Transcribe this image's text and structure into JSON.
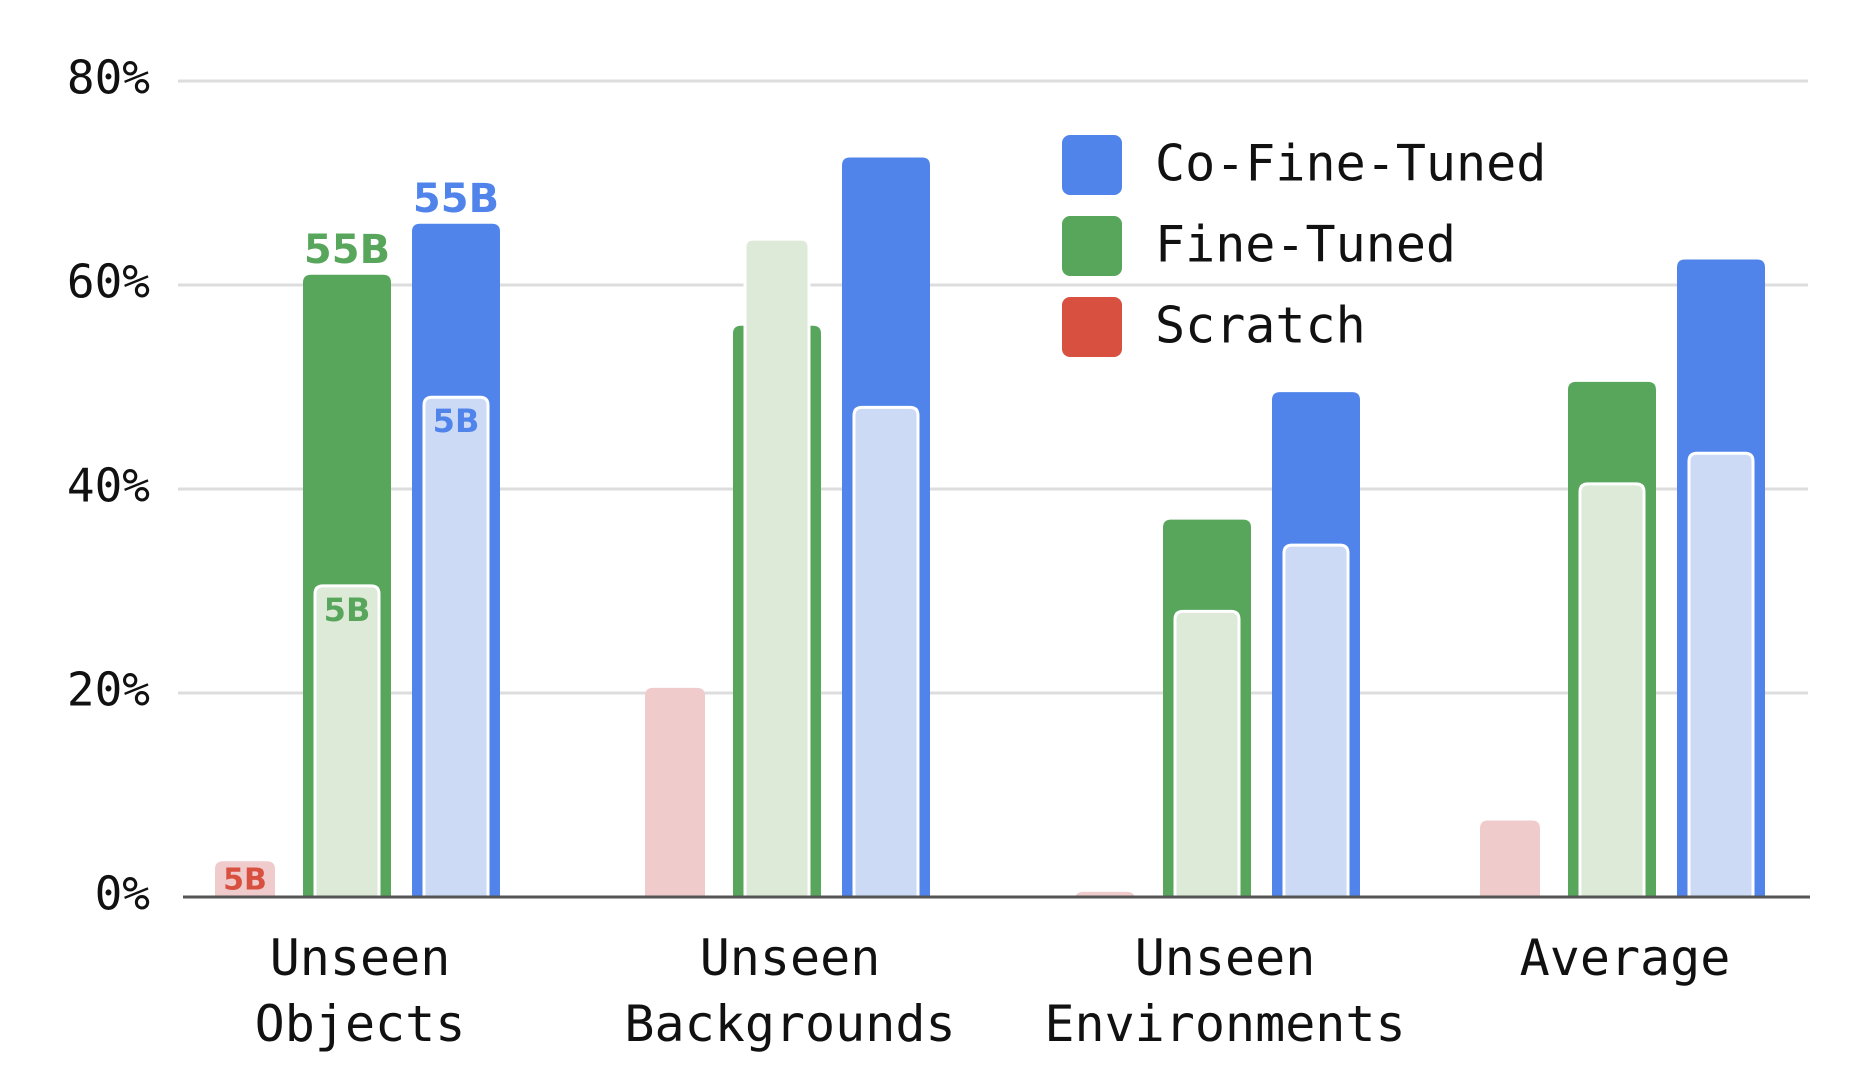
{
  "chart_data": {
    "type": "bar",
    "categories": [
      [
        "Unseen",
        "Objects"
      ],
      [
        "Unseen",
        "Backgrounds"
      ],
      [
        "Unseen",
        "Environments"
      ],
      [
        "Average"
      ]
    ],
    "yticks": [
      "0%",
      "20%",
      "40%",
      "60%",
      "80%"
    ],
    "ylim": [
      0,
      80
    ],
    "grid": true,
    "legend_placement": "top-right",
    "series": [
      {
        "name": "Co-Fine-Tuned",
        "color": "#5084EA",
        "light_color": "#CCDAF6",
        "values_55B": [
          66,
          72.5,
          49.5,
          62.5
        ],
        "values_5B": [
          49,
          48,
          34.5,
          43.5
        ]
      },
      {
        "name": "Fine-Tuned",
        "color": "#58A65C",
        "light_color": "#DDEAD7",
        "values_55B": [
          61,
          56,
          37,
          50.5
        ],
        "values_5B": [
          30.5,
          64.5,
          28,
          40.5
        ]
      },
      {
        "name": "Scratch",
        "color": "#D85140",
        "light_color": "#F0CBCB",
        "values_55B": [
          null,
          null,
          null,
          null
        ],
        "values_5B": [
          3.5,
          20.5,
          0.5,
          7.5
        ]
      }
    ],
    "annotations": {
      "scratch_5B": "5B",
      "fine_tuned_55B": "55B",
      "fine_tuned_5B": "5B",
      "co_fine_tuned_55B": "55B",
      "co_fine_tuned_5B": "5B"
    }
  }
}
